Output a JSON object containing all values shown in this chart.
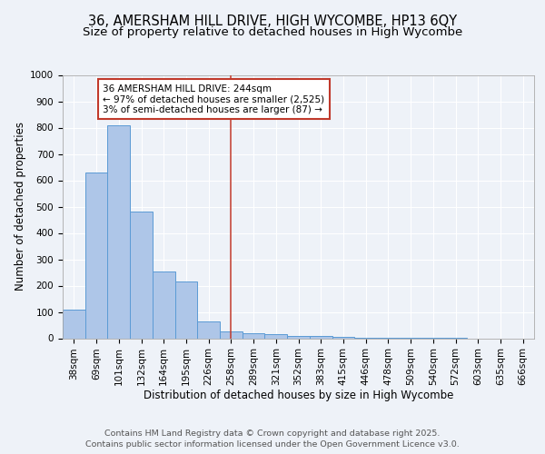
{
  "title_line1": "36, AMERSHAM HILL DRIVE, HIGH WYCOMBE, HP13 6QY",
  "title_line2": "Size of property relative to detached houses in High Wycombe",
  "xlabel": "Distribution of detached houses by size in High Wycombe",
  "ylabel": "Number of detached properties",
  "categories": [
    "38sqm",
    "69sqm",
    "101sqm",
    "132sqm",
    "164sqm",
    "195sqm",
    "226sqm",
    "258sqm",
    "289sqm",
    "321sqm",
    "352sqm",
    "383sqm",
    "415sqm",
    "446sqm",
    "478sqm",
    "509sqm",
    "540sqm",
    "572sqm",
    "603sqm",
    "635sqm",
    "666sqm"
  ],
  "values": [
    110,
    630,
    810,
    480,
    255,
    215,
    65,
    27,
    20,
    15,
    10,
    7,
    5,
    2,
    2,
    1,
    1,
    1,
    0,
    0,
    0
  ],
  "bar_color": "#aec6e8",
  "bar_edge_color": "#5b9bd5",
  "vline_x": 7,
  "vline_color": "#c0392b",
  "annotation_text": "36 AMERSHAM HILL DRIVE: 244sqm\n← 97% of detached houses are smaller (2,525)\n3% of semi-detached houses are larger (87) →",
  "annotation_box_color": "#c0392b",
  "footer_text": "Contains HM Land Registry data © Crown copyright and database right 2025.\nContains public sector information licensed under the Open Government Licence v3.0.",
  "ylim": [
    0,
    1000
  ],
  "background_color": "#eef2f8",
  "plot_background": "#eef2f8",
  "grid_color": "#ffffff",
  "title_fontsize": 10.5,
  "subtitle_fontsize": 9.5,
  "axis_label_fontsize": 8.5,
  "tick_fontsize": 7.5,
  "footer_fontsize": 6.8,
  "annot_fontsize": 7.5
}
